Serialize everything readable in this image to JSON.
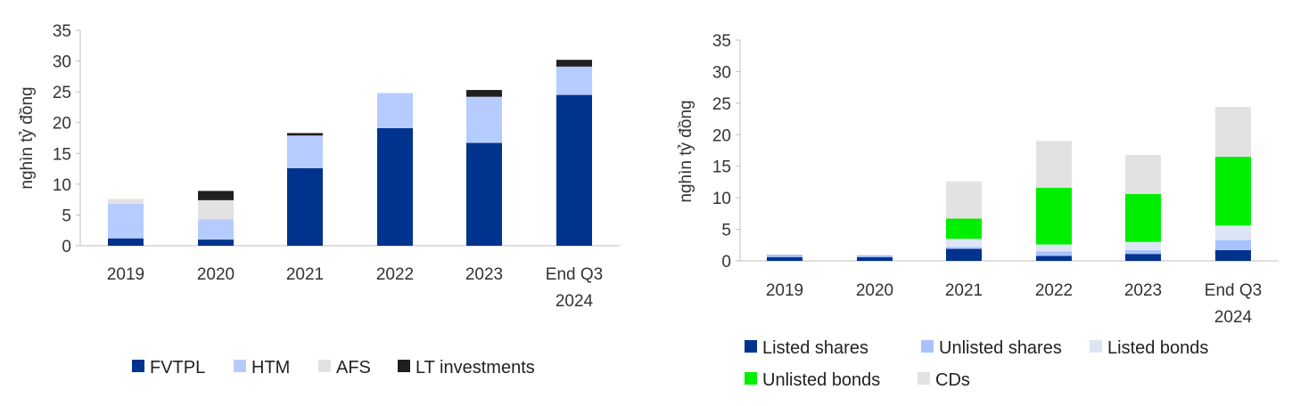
{
  "chart_data": [
    {
      "type": "bar",
      "stacked": true,
      "ylabel": "nghìn tỷ đồng",
      "ylim": [
        0,
        35
      ],
      "yticks": [
        0,
        5,
        10,
        15,
        20,
        25,
        30,
        35
      ],
      "categories": [
        [
          "2019"
        ],
        [
          "2020"
        ],
        [
          "2021"
        ],
        [
          "2022"
        ],
        [
          "2023"
        ],
        [
          "End Q3",
          "2024"
        ]
      ],
      "series": [
        {
          "name": "FVTPL",
          "color": "#00338d",
          "values": [
            1.2,
            1.0,
            12.6,
            19.1,
            16.7,
            24.5
          ]
        },
        {
          "name": "HTM",
          "color": "#b6ccff",
          "values": [
            5.6,
            3.3,
            5.3,
            5.7,
            7.5,
            4.6
          ]
        },
        {
          "name": "AFS",
          "color": "#e2e2e2",
          "values": [
            0.8,
            3.1,
            0.0,
            0.0,
            0.0,
            0.0
          ]
        },
        {
          "name": "LT investments",
          "color": "#1f1f1f",
          "values": [
            0.0,
            1.5,
            0.4,
            0.0,
            1.1,
            1.1
          ]
        }
      ],
      "legend_position": "bottom"
    },
    {
      "type": "bar",
      "stacked": true,
      "ylabel": "nghìn tỷ đồng",
      "ylim": [
        0,
        35
      ],
      "yticks": [
        0,
        5,
        10,
        15,
        20,
        25,
        30,
        35
      ],
      "categories": [
        [
          "2019"
        ],
        [
          "2020"
        ],
        [
          "2021"
        ],
        [
          "2022"
        ],
        [
          "2023"
        ],
        [
          "End Q3",
          "2024"
        ]
      ],
      "series": [
        {
          "name": "Listed shares",
          "color": "#00338d",
          "values": [
            0.6,
            0.6,
            1.9,
            0.8,
            1.1,
            1.7
          ]
        },
        {
          "name": "Unlisted shares",
          "color": "#a8c2ff",
          "values": [
            0.4,
            0.3,
            0.3,
            0.7,
            0.6,
            1.6
          ]
        },
        {
          "name": "Listed bonds",
          "color": "#dde5f5",
          "values": [
            0.0,
            0.0,
            1.3,
            1.1,
            1.3,
            2.3
          ]
        },
        {
          "name": "Unlisted bonds",
          "color": "#00ee00",
          "values": [
            0.0,
            0.0,
            3.2,
            9.0,
            7.6,
            10.9
          ]
        },
        {
          "name": "CDs",
          "color": "#e2e2e2",
          "values": [
            0.0,
            0.0,
            5.9,
            7.4,
            6.2,
            7.9
          ]
        }
      ],
      "legend_position": "bottom"
    }
  ]
}
